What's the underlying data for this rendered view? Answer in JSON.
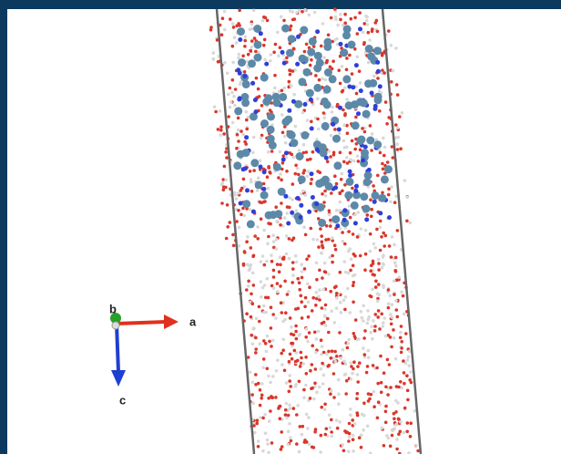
{
  "axes": {
    "a": "a",
    "b": "b",
    "c": "c"
  }
}
